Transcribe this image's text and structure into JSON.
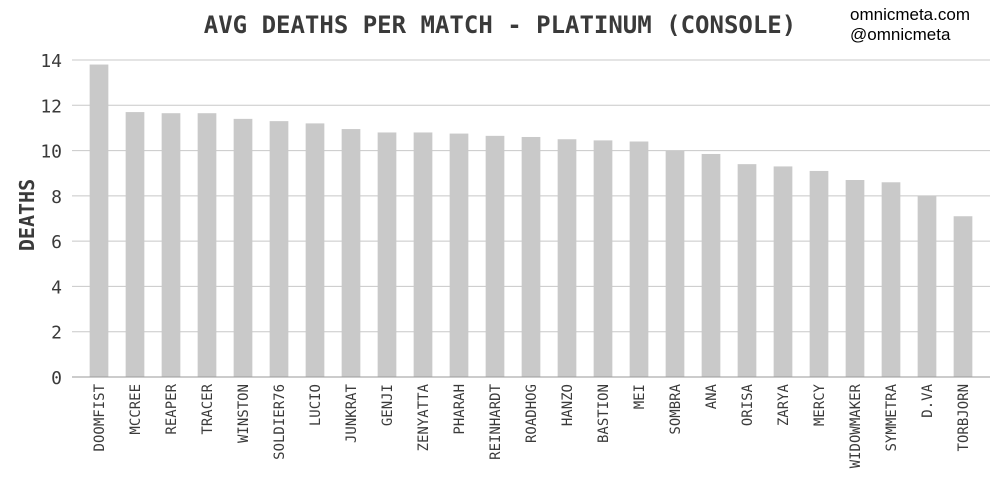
{
  "chart_data": {
    "type": "bar",
    "title": "AVG DEATHS PER MATCH - PLATINUM (CONSOLE)",
    "ylabel": "DEATHS",
    "xlabel": "",
    "ylim": [
      0,
      14
    ],
    "yticks": [
      "0",
      "2",
      "4",
      "6",
      "8",
      "10",
      "12",
      "14"
    ],
    "grid": true,
    "categories": [
      "DOOMFIST",
      "MCCREE",
      "REAPER",
      "TRACER",
      "WINSTON",
      "SOLDIER76",
      "LUCIO",
      "JUNKRAT",
      "GENJI",
      "ZENYATTA",
      "PHARAH",
      "REINHARDT",
      "ROADHOG",
      "HANZO",
      "BASTION",
      "MEI",
      "SOMBRA",
      "ANA",
      "ORISA",
      "ZARYA",
      "MERCY",
      "WIDOWMAKER",
      "SYMMETRA",
      "D.VA",
      "TORBJORN"
    ],
    "values": [
      13.8,
      11.7,
      11.65,
      11.65,
      11.4,
      11.3,
      11.2,
      10.95,
      10.8,
      10.8,
      10.75,
      10.65,
      10.6,
      10.5,
      10.45,
      10.4,
      10.0,
      9.85,
      9.4,
      9.3,
      9.1,
      8.7,
      8.6,
      8.0,
      7.1
    ],
    "bar_color": "#c9c9c9"
  },
  "credits": {
    "site": "omnicmeta.com",
    "handle": "@omnicmeta"
  }
}
